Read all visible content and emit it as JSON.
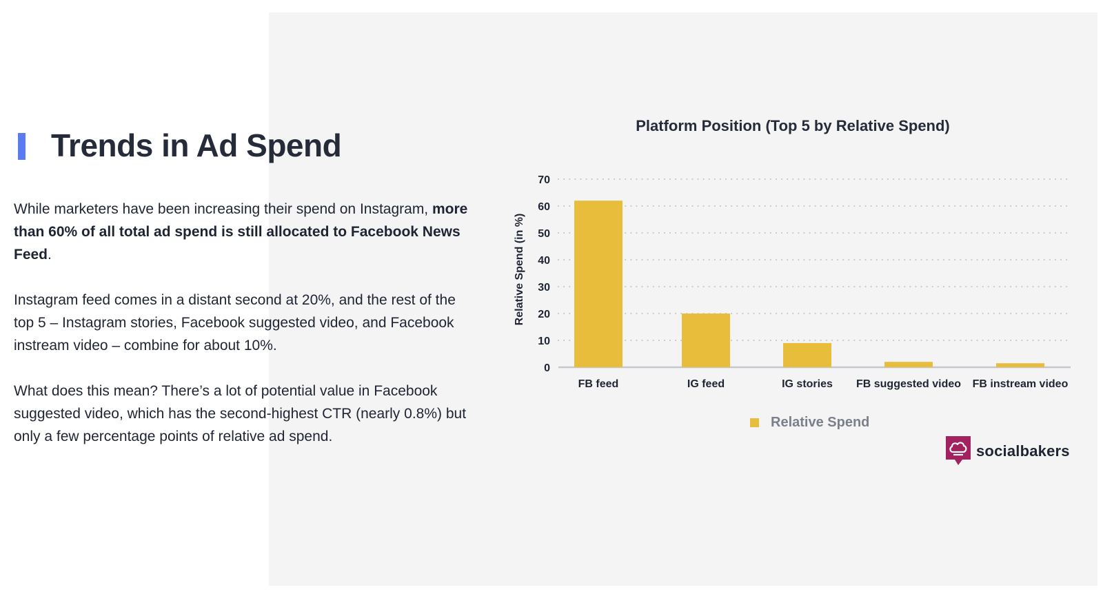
{
  "page": {
    "heading": "Trends in Ad Spend",
    "paragraph1_intro": "While marketers have been increasing their spend on Instagram, ",
    "paragraph1_bold": "more than 60% of all total ad spend is still allocated to Facebook News Feed",
    "paragraph1_end": ".",
    "paragraph2": "Instagram feed comes in a distant second at 20%, and the rest of the top 5 – Instagram stories, Facebook suggested video, and Facebook instream video – combine for about 10%.",
    "paragraph3": "What does this mean? There’s a lot of potential value in Facebook suggested video, which has the second-highest CTR (nearly 0.8%) but only a few percentage points of relative ad spend.",
    "accent_color": "#5b7cf0",
    "panel_color": "#f4f4f5"
  },
  "brand": {
    "name": "socialbakers",
    "logo_icon": "chef-hat-speech-bubble-icon",
    "logo_color": "#a3215f"
  },
  "chart_data": {
    "type": "bar",
    "title": "Platform Position (Top 5 by Relative Spend)",
    "xlabel": "",
    "ylabel": "Relative Spend (in %)",
    "categories": [
      "FB feed",
      "IG feed",
      "IG stories",
      "FB suggested video",
      "FB instream video"
    ],
    "series": [
      {
        "name": "Relative Spend",
        "values": [
          62,
          20,
          9,
          2,
          1.5
        ],
        "color": "#e8bd3c"
      }
    ],
    "ylim": [
      0,
      70
    ],
    "yticks": [
      0,
      10,
      20,
      30,
      40,
      50,
      60,
      70
    ],
    "grid": true,
    "legend_position": "bottom-center"
  }
}
